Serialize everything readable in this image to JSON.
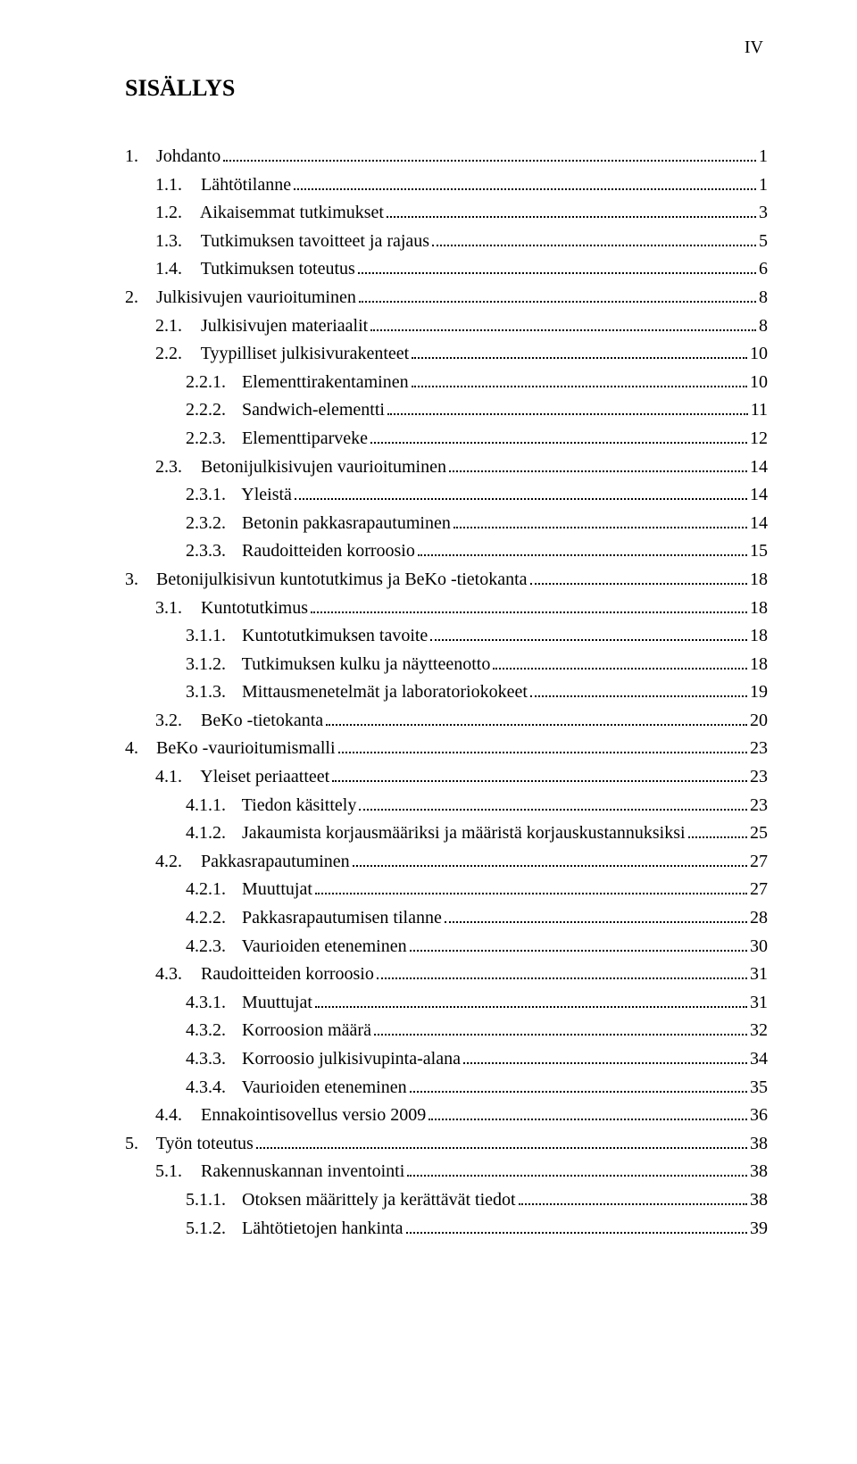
{
  "pageNumber": "IV",
  "heading": "SISÄLLYS",
  "entries": [
    {
      "level": 0,
      "num": "1.",
      "title": "Johdanto",
      "page": "1"
    },
    {
      "level": 1,
      "num": "1.1.",
      "title": "Lähtötilanne",
      "page": "1"
    },
    {
      "level": 1,
      "num": "1.2.",
      "title": "Aikaisemmat tutkimukset",
      "page": "3"
    },
    {
      "level": 1,
      "num": "1.3.",
      "title": "Tutkimuksen tavoitteet ja rajaus",
      "page": "5"
    },
    {
      "level": 1,
      "num": "1.4.",
      "title": "Tutkimuksen toteutus",
      "page": "6"
    },
    {
      "level": 0,
      "num": "2.",
      "title": "Julkisivujen vaurioituminen",
      "page": "8"
    },
    {
      "level": 1,
      "num": "2.1.",
      "title": "Julkisivujen materiaalit",
      "page": "8"
    },
    {
      "level": 1,
      "num": "2.2.",
      "title": "Tyypilliset julkisivurakenteet",
      "page": "10"
    },
    {
      "level": 2,
      "num": "2.2.1.",
      "title": "Elementtirakentaminen",
      "page": "10"
    },
    {
      "level": 2,
      "num": "2.2.2.",
      "title": "Sandwich-elementti",
      "page": "11"
    },
    {
      "level": 2,
      "num": "2.2.3.",
      "title": "Elementtiparveke",
      "page": "12"
    },
    {
      "level": 1,
      "num": "2.3.",
      "title": "Betonijulkisivujen vaurioituminen",
      "page": "14"
    },
    {
      "level": 2,
      "num": "2.3.1.",
      "title": "Yleistä",
      "page": "14"
    },
    {
      "level": 2,
      "num": "2.3.2.",
      "title": "Betonin pakkasrapautuminen",
      "page": "14"
    },
    {
      "level": 2,
      "num": "2.3.3.",
      "title": "Raudoitteiden korroosio",
      "page": "15"
    },
    {
      "level": 0,
      "num": "3.",
      "title": "Betonijulkisivun kuntotutkimus ja BeKo -tietokanta",
      "page": "18"
    },
    {
      "level": 1,
      "num": "3.1.",
      "title": "Kuntotutkimus",
      "page": "18"
    },
    {
      "level": 2,
      "num": "3.1.1.",
      "title": "Kuntotutkimuksen tavoite",
      "page": "18"
    },
    {
      "level": 2,
      "num": "3.1.2.",
      "title": "Tutkimuksen kulku ja näytteenotto",
      "page": "18"
    },
    {
      "level": 2,
      "num": "3.1.3.",
      "title": "Mittausmenetelmät ja laboratoriokokeet",
      "page": "19"
    },
    {
      "level": 1,
      "num": "3.2.",
      "title": "BeKo -tietokanta",
      "page": "20"
    },
    {
      "level": 0,
      "num": "4.",
      "title": "BeKo -vaurioitumismalli",
      "page": "23"
    },
    {
      "level": 1,
      "num": "4.1.",
      "title": "Yleiset periaatteet",
      "page": "23"
    },
    {
      "level": 2,
      "num": "4.1.1.",
      "title": "Tiedon käsittely",
      "page": "23"
    },
    {
      "level": 2,
      "num": "4.1.2.",
      "title": "Jakaumista korjausmääriksi ja määristä korjauskustannuksiksi",
      "page": "25"
    },
    {
      "level": 1,
      "num": "4.2.",
      "title": "Pakkasrapautuminen",
      "page": "27"
    },
    {
      "level": 2,
      "num": "4.2.1.",
      "title": "Muuttujat",
      "page": "27"
    },
    {
      "level": 2,
      "num": "4.2.2.",
      "title": "Pakkasrapautumisen tilanne",
      "page": "28"
    },
    {
      "level": 2,
      "num": "4.2.3.",
      "title": "Vaurioiden eteneminen",
      "page": "30"
    },
    {
      "level": 1,
      "num": "4.3.",
      "title": "Raudoitteiden korroosio",
      "page": "31"
    },
    {
      "level": 2,
      "num": "4.3.1.",
      "title": "Muuttujat",
      "page": "31"
    },
    {
      "level": 2,
      "num": "4.3.2.",
      "title": "Korroosion määrä",
      "page": "32"
    },
    {
      "level": 2,
      "num": "4.3.3.",
      "title": "Korroosio julkisivupinta-alana",
      "page": "34"
    },
    {
      "level": 2,
      "num": "4.3.4.",
      "title": "Vaurioiden eteneminen",
      "page": "35"
    },
    {
      "level": 1,
      "num": "4.4.",
      "title": "Ennakointisovellus versio 2009",
      "page": "36"
    },
    {
      "level": 0,
      "num": "5.",
      "title": "Työn toteutus",
      "page": "38"
    },
    {
      "level": 1,
      "num": "5.1.",
      "title": "Rakennuskannan inventointi",
      "page": "38"
    },
    {
      "level": 2,
      "num": "5.1.1.",
      "title": "Otoksen määrittely ja kerättävät tiedot",
      "page": "38"
    },
    {
      "level": 2,
      "num": "5.1.2.",
      "title": "Lähtötietojen hankinta",
      "page": "39"
    }
  ]
}
